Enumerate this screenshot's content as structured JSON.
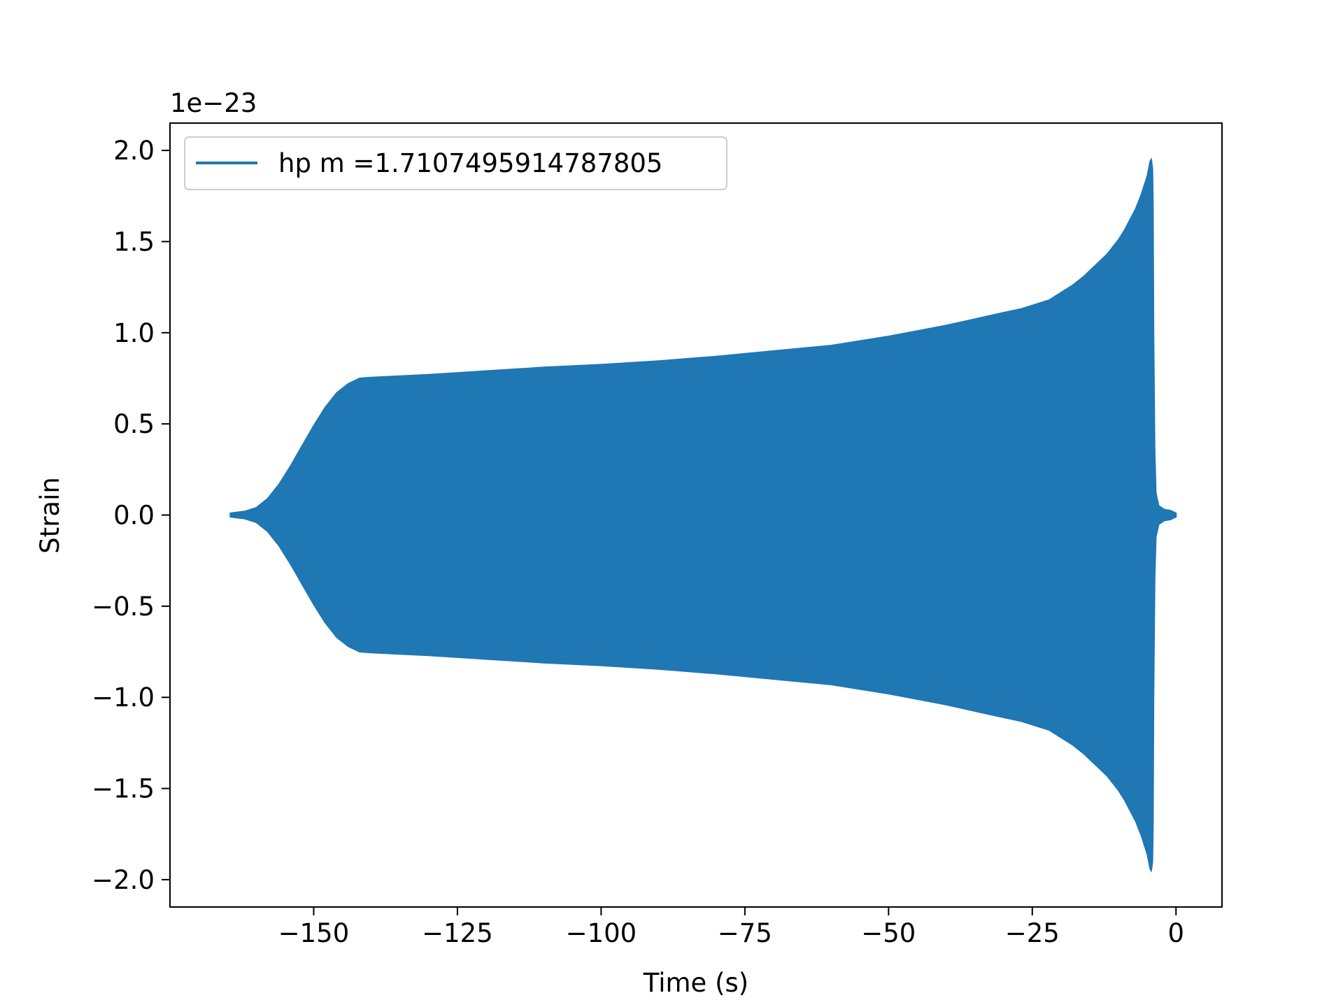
{
  "chart_data": {
    "type": "area",
    "title": "",
    "xlabel": "Time (s)",
    "ylabel": "Strain",
    "y_offset_text": "1e−23",
    "xlim": [
      -175,
      8
    ],
    "ylim": [
      -2.15,
      2.15
    ],
    "xticks": [
      -150,
      -125,
      -100,
      -75,
      -50,
      -25,
      0
    ],
    "xtick_labels": [
      "−150",
      "−125",
      "−100",
      "−75",
      "−50",
      "−25",
      "0"
    ],
    "yticks": [
      2.0,
      1.5,
      1.0,
      0.5,
      0.0,
      -0.5,
      -1.0,
      -1.5,
      -2.0
    ],
    "ytick_labels": [
      "2.0",
      "1.5",
      "1.0",
      "0.5",
      "0.0",
      "−0.5",
      "−1.0",
      "−1.5",
      "−2.0"
    ],
    "grid": false,
    "legend_position": "top-left",
    "series": [
      {
        "name": "hp m =1.7107495914787805",
        "color": "#1f77b4",
        "envelope": {
          "x": [
            -164.5,
            -162,
            -160,
            -158,
            -156,
            -154,
            -152,
            -150,
            -148,
            -146,
            -144,
            -142,
            -140,
            -130,
            -120,
            -110,
            -100,
            -90,
            -80,
            -70,
            -60,
            -50,
            -45,
            -40,
            -35,
            -30,
            -27,
            -25,
            -22,
            -20,
            -18,
            -16,
            -14,
            -12,
            -10,
            -9,
            -8,
            -7,
            -6,
            -5,
            -4.5,
            -4.3,
            -4.1,
            -4.0,
            -3.9,
            -3.7,
            -3.5,
            -3.0,
            -2.0,
            -1.0,
            0.0
          ],
          "upper": [
            0.01,
            0.02,
            0.04,
            0.09,
            0.17,
            0.27,
            0.38,
            0.49,
            0.59,
            0.67,
            0.72,
            0.75,
            0.755,
            0.77,
            0.79,
            0.81,
            0.825,
            0.845,
            0.87,
            0.9,
            0.93,
            0.98,
            1.01,
            1.04,
            1.075,
            1.11,
            1.13,
            1.15,
            1.18,
            1.22,
            1.26,
            1.31,
            1.37,
            1.43,
            1.51,
            1.56,
            1.62,
            1.68,
            1.76,
            1.86,
            1.94,
            1.95,
            1.9,
            1.7,
            1.0,
            0.35,
            0.12,
            0.05,
            0.03,
            0.025,
            0.01
          ],
          "lower": [
            -0.01,
            -0.02,
            -0.04,
            -0.09,
            -0.17,
            -0.27,
            -0.38,
            -0.49,
            -0.59,
            -0.67,
            -0.72,
            -0.75,
            -0.755,
            -0.77,
            -0.79,
            -0.81,
            -0.825,
            -0.845,
            -0.87,
            -0.9,
            -0.93,
            -0.98,
            -1.01,
            -1.04,
            -1.075,
            -1.11,
            -1.13,
            -1.15,
            -1.18,
            -1.22,
            -1.26,
            -1.31,
            -1.37,
            -1.43,
            -1.51,
            -1.56,
            -1.62,
            -1.68,
            -1.76,
            -1.86,
            -1.94,
            -1.95,
            -1.9,
            -1.7,
            -1.0,
            -0.35,
            -0.12,
            -0.05,
            -0.03,
            -0.025,
            -0.01
          ]
        }
      }
    ]
  }
}
